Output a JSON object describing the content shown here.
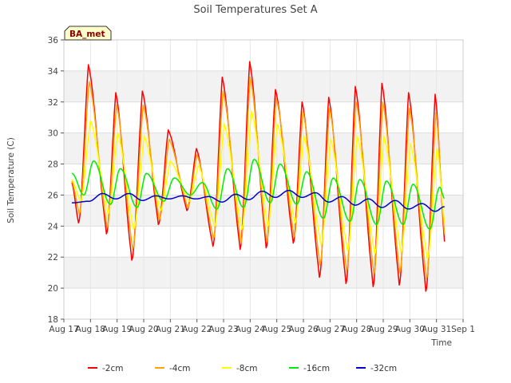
{
  "chart_data": {
    "type": "line",
    "title": "Soil Temperatures Set A",
    "xlabel": "Time",
    "ylabel": "Soil Temperature (C)",
    "badge": "BA_met",
    "ylim": [
      18,
      36
    ],
    "yticks": [
      18,
      20,
      22,
      24,
      26,
      28,
      30,
      32,
      34,
      36
    ],
    "xlim": [
      0,
      15
    ],
    "xticks": [
      {
        "x": 0,
        "label": "Aug 17"
      },
      {
        "x": 1,
        "label": "Aug 18"
      },
      {
        "x": 2,
        "label": "Aug 19"
      },
      {
        "x": 3,
        "label": "Aug 20"
      },
      {
        "x": 4,
        "label": "Aug 21"
      },
      {
        "x": 5,
        "label": "Aug 22"
      },
      {
        "x": 6,
        "label": "Aug 23"
      },
      {
        "x": 7,
        "label": "Aug 24"
      },
      {
        "x": 8,
        "label": "Aug 25"
      },
      {
        "x": 9,
        "label": "Aug 26"
      },
      {
        "x": 10,
        "label": "Aug 27"
      },
      {
        "x": 11,
        "label": "Aug 28"
      },
      {
        "x": 12,
        "label": "Aug 29"
      },
      {
        "x": 13,
        "label": "Aug 30"
      },
      {
        "x": 14,
        "label": "Aug 31"
      },
      {
        "x": 15,
        "label": "Sep 1"
      }
    ],
    "grid": true,
    "legend_position": "bottom",
    "series": [
      {
        "name": "-2cm",
        "color": "#ff0000",
        "kind": "spike",
        "x0": 0.3,
        "x1": 14.3,
        "peaks": [
          [
            0.92,
            34.4
          ],
          [
            1.95,
            32.6
          ],
          [
            2.95,
            32.7
          ],
          [
            3.92,
            30.2
          ],
          [
            4.98,
            29.0
          ],
          [
            5.95,
            33.6
          ],
          [
            6.98,
            34.6
          ],
          [
            7.95,
            32.8
          ],
          [
            8.95,
            32.0
          ],
          [
            9.95,
            32.3
          ],
          [
            10.95,
            33.0
          ],
          [
            11.95,
            33.2
          ],
          [
            12.95,
            32.6
          ],
          [
            13.95,
            32.5
          ]
        ],
        "troughs": [
          [
            0.3,
            26.8
          ],
          [
            0.55,
            24.2
          ],
          [
            1.6,
            23.5
          ],
          [
            2.55,
            21.8
          ],
          [
            3.55,
            24.1
          ],
          [
            4.62,
            25.0
          ],
          [
            5.6,
            22.7
          ],
          [
            6.62,
            22.5
          ],
          [
            7.6,
            22.6
          ],
          [
            8.62,
            22.9
          ],
          [
            9.6,
            20.7
          ],
          [
            10.6,
            20.3
          ],
          [
            11.62,
            20.1
          ],
          [
            12.6,
            20.2
          ],
          [
            13.6,
            19.8
          ],
          [
            14.3,
            23.0
          ]
        ]
      },
      {
        "name": "-4cm",
        "color": "#ffa500",
        "kind": "spike",
        "x0": 0.3,
        "x1": 14.3,
        "peaks": [
          [
            0.95,
            33.3
          ],
          [
            1.98,
            31.8
          ],
          [
            2.98,
            31.8
          ],
          [
            3.95,
            29.6
          ],
          [
            5.0,
            28.6
          ],
          [
            5.98,
            32.7
          ],
          [
            7.0,
            33.6
          ],
          [
            7.98,
            32.2
          ],
          [
            8.98,
            31.4
          ],
          [
            9.98,
            31.6
          ],
          [
            10.98,
            32.0
          ],
          [
            11.98,
            32.0
          ],
          [
            12.98,
            31.6
          ],
          [
            13.98,
            31.3
          ]
        ],
        "troughs": [
          [
            0.3,
            26.9
          ],
          [
            0.58,
            24.8
          ],
          [
            1.62,
            23.9
          ],
          [
            2.58,
            22.5
          ],
          [
            3.58,
            24.4
          ],
          [
            4.65,
            25.2
          ],
          [
            5.62,
            23.2
          ],
          [
            6.65,
            22.9
          ],
          [
            7.62,
            23.0
          ],
          [
            8.65,
            23.3
          ],
          [
            9.62,
            21.5
          ],
          [
            10.62,
            21.1
          ],
          [
            11.65,
            20.9
          ],
          [
            12.62,
            21.0
          ],
          [
            13.62,
            20.6
          ],
          [
            14.3,
            23.5
          ]
        ]
      },
      {
        "name": "-8cm",
        "color": "#ffff00",
        "kind": "spike",
        "x0": 0.3,
        "x1": 14.3,
        "peaks": [
          [
            1.0,
            30.8
          ],
          [
            2.02,
            30.0
          ],
          [
            3.02,
            29.8
          ],
          [
            4.0,
            28.2
          ],
          [
            5.05,
            27.9
          ],
          [
            6.02,
            30.6
          ],
          [
            7.05,
            31.4
          ],
          [
            8.02,
            30.6
          ],
          [
            9.02,
            29.8
          ],
          [
            10.02,
            29.6
          ],
          [
            11.02,
            29.8
          ],
          [
            12.02,
            29.8
          ],
          [
            13.02,
            29.3
          ],
          [
            14.02,
            29.0
          ]
        ],
        "troughs": [
          [
            0.3,
            27.0
          ],
          [
            0.62,
            25.6
          ],
          [
            1.66,
            24.8
          ],
          [
            2.62,
            23.8
          ],
          [
            3.62,
            25.0
          ],
          [
            4.7,
            25.6
          ],
          [
            5.66,
            24.0
          ],
          [
            6.68,
            23.8
          ],
          [
            7.66,
            24.0
          ],
          [
            8.68,
            24.2
          ],
          [
            9.66,
            22.8
          ],
          [
            10.66,
            22.4
          ],
          [
            11.68,
            22.2
          ],
          [
            12.66,
            22.3
          ],
          [
            13.66,
            21.9
          ],
          [
            14.3,
            24.2
          ]
        ]
      },
      {
        "name": "-16cm",
        "color": "#00ee00",
        "kind": "smooth",
        "x0": 0.3,
        "x1": 14.3,
        "peaks": [
          [
            0.3,
            27.4
          ],
          [
            1.12,
            28.2
          ],
          [
            2.12,
            27.7
          ],
          [
            3.1,
            27.4
          ],
          [
            4.15,
            27.1
          ],
          [
            5.2,
            26.8
          ],
          [
            6.15,
            27.7
          ],
          [
            7.15,
            28.3
          ],
          [
            8.12,
            28.0
          ],
          [
            9.12,
            27.5
          ],
          [
            10.12,
            27.1
          ],
          [
            11.12,
            27.0
          ],
          [
            12.12,
            26.9
          ],
          [
            13.12,
            26.7
          ],
          [
            14.12,
            26.5
          ]
        ],
        "troughs": [
          [
            0.75,
            26.0
          ],
          [
            1.75,
            25.4
          ],
          [
            2.75,
            25.2
          ],
          [
            3.75,
            25.6
          ],
          [
            4.75,
            26.0
          ],
          [
            5.75,
            25.1
          ],
          [
            6.75,
            25.2
          ],
          [
            7.75,
            25.5
          ],
          [
            8.75,
            25.4
          ],
          [
            9.75,
            24.5
          ],
          [
            10.75,
            24.3
          ],
          [
            11.75,
            24.1
          ],
          [
            12.75,
            24.1
          ],
          [
            13.75,
            23.8
          ],
          [
            14.3,
            25.8
          ]
        ]
      },
      {
        "name": "-32cm",
        "color": "#0000cc",
        "kind": "smooth",
        "x0": 0.3,
        "x1": 14.3,
        "peaks": [
          [
            0.3,
            25.5
          ],
          [
            1.45,
            26.1
          ],
          [
            2.45,
            26.1
          ],
          [
            3.45,
            25.95
          ],
          [
            4.45,
            25.95
          ],
          [
            5.45,
            25.9
          ],
          [
            6.45,
            26.05
          ],
          [
            7.45,
            26.25
          ],
          [
            8.45,
            26.3
          ],
          [
            9.45,
            26.15
          ],
          [
            10.45,
            25.9
          ],
          [
            11.45,
            25.75
          ],
          [
            12.45,
            25.65
          ],
          [
            13.45,
            25.45
          ],
          [
            14.3,
            25.25
          ]
        ],
        "troughs": [
          [
            0.95,
            25.6
          ],
          [
            1.95,
            25.75
          ],
          [
            2.95,
            25.65
          ],
          [
            3.95,
            25.75
          ],
          [
            4.95,
            25.75
          ],
          [
            5.95,
            25.55
          ],
          [
            6.95,
            25.7
          ],
          [
            7.95,
            25.85
          ],
          [
            8.95,
            25.85
          ],
          [
            9.95,
            25.55
          ],
          [
            10.95,
            25.35
          ],
          [
            11.95,
            25.2
          ],
          [
            12.95,
            25.1
          ],
          [
            13.95,
            24.95
          ]
        ]
      }
    ]
  }
}
